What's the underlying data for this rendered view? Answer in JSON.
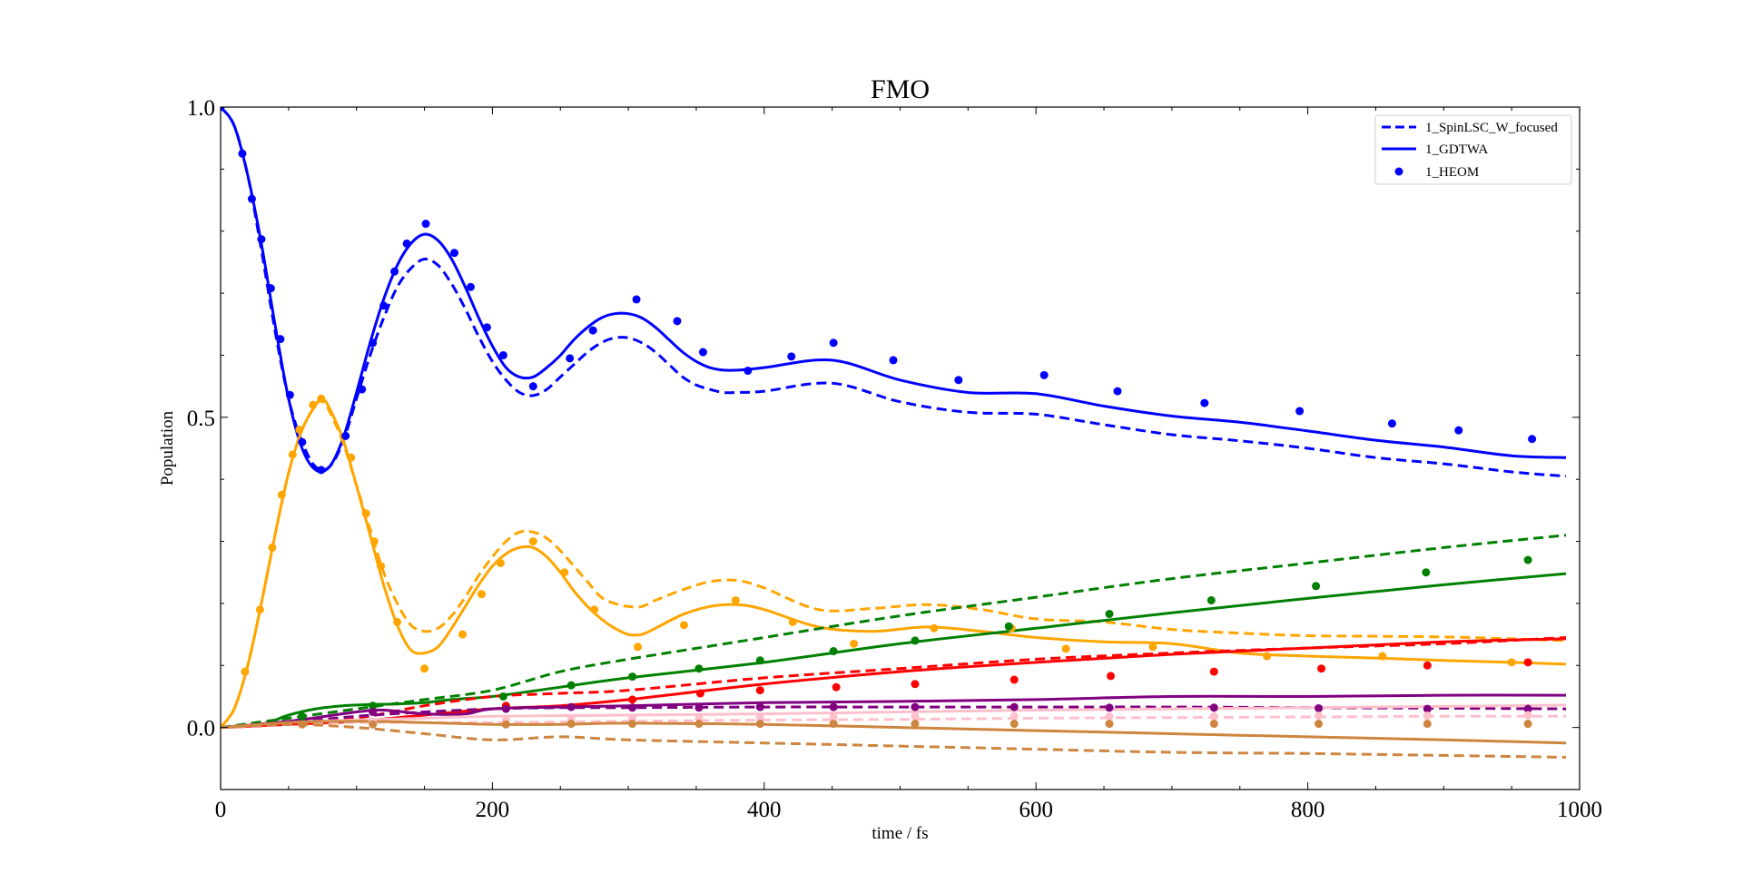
{
  "chart_data": {
    "type": "line",
    "title": "FMO",
    "xlabel": "time / fs",
    "ylabel": "Population",
    "xlim": [
      0,
      1000
    ],
    "ylim": [
      -0.1,
      1.0
    ],
    "x_major_ticks": [
      0,
      200,
      400,
      600,
      800,
      1000
    ],
    "x_major_tick_labels": [
      "0",
      "200",
      "400",
      "600",
      "800",
      "1000"
    ],
    "x_minor_ticks": [
      50,
      100,
      150,
      250,
      300,
      350,
      450,
      500,
      550,
      650,
      700,
      750,
      850,
      900,
      950
    ],
    "y_major_ticks": [
      0.0,
      0.5,
      1.0
    ],
    "y_major_tick_labels": [
      "0.0",
      "0.5",
      "1.0"
    ],
    "y_minor_ticks": [
      -0.1,
      0.1,
      0.2,
      0.3,
      0.4,
      0.6,
      0.7,
      0.8,
      0.9
    ],
    "grid": false,
    "legend_position": "top-right",
    "legend": [
      {
        "label": "1_SpinLSC_W_focused",
        "style": "dashed",
        "color": "#0000ff"
      },
      {
        "label": "1_GDTWA",
        "style": "solid",
        "color": "#0000ff"
      },
      {
        "label": "1_HEOM",
        "style": "dots",
        "color": "#0000ff"
      }
    ],
    "series": [
      {
        "name": "1_SpinLSC_W_focused",
        "color": "#0000ff",
        "style": "dashed",
        "x": [
          0,
          10,
          20,
          30,
          40,
          50,
          60,
          70,
          80,
          90,
          100,
          110,
          120,
          130,
          140,
          150,
          160,
          170,
          180,
          190,
          200,
          210,
          220,
          230,
          240,
          250,
          260,
          270,
          280,
          290,
          300,
          310,
          320,
          330,
          340,
          350,
          360,
          370,
          380,
          400,
          450,
          500,
          550,
          600,
          650,
          700,
          750,
          800,
          850,
          900,
          950,
          990
        ],
        "y": [
          1.0,
          0.97,
          0.89,
          0.77,
          0.64,
          0.53,
          0.46,
          0.42,
          0.42,
          0.46,
          0.53,
          0.6,
          0.66,
          0.71,
          0.74,
          0.755,
          0.745,
          0.715,
          0.675,
          0.63,
          0.59,
          0.56,
          0.54,
          0.535,
          0.545,
          0.565,
          0.585,
          0.605,
          0.62,
          0.628,
          0.628,
          0.62,
          0.605,
          0.585,
          0.565,
          0.552,
          0.545,
          0.54,
          0.54,
          0.542,
          0.555,
          0.525,
          0.508,
          0.505,
          0.488,
          0.472,
          0.462,
          0.45,
          0.435,
          0.425,
          0.412,
          0.405
        ]
      },
      {
        "name": "1_GDTWA",
        "color": "#0000ff",
        "style": "solid",
        "x": [
          0,
          10,
          20,
          30,
          40,
          50,
          60,
          70,
          80,
          90,
          100,
          110,
          120,
          130,
          140,
          150,
          160,
          170,
          180,
          190,
          200,
          210,
          220,
          230,
          240,
          250,
          260,
          270,
          280,
          290,
          300,
          310,
          320,
          330,
          340,
          350,
          360,
          370,
          380,
          400,
          450,
          500,
          550,
          600,
          650,
          700,
          750,
          800,
          850,
          900,
          950,
          990
        ],
        "y": [
          1.0,
          0.97,
          0.89,
          0.78,
          0.65,
          0.53,
          0.45,
          0.415,
          0.42,
          0.465,
          0.54,
          0.62,
          0.69,
          0.745,
          0.78,
          0.795,
          0.785,
          0.755,
          0.71,
          0.66,
          0.615,
          0.58,
          0.565,
          0.565,
          0.58,
          0.6,
          0.625,
          0.645,
          0.66,
          0.667,
          0.667,
          0.66,
          0.645,
          0.625,
          0.605,
          0.59,
          0.58,
          0.576,
          0.576,
          0.58,
          0.592,
          0.56,
          0.54,
          0.538,
          0.518,
          0.502,
          0.492,
          0.478,
          0.463,
          0.452,
          0.438,
          0.435
        ]
      },
      {
        "name": "1_HEOM",
        "color": "#0000ff",
        "style": "dots",
        "x": [
          0,
          16,
          23,
          30,
          37,
          44,
          51,
          60,
          74,
          92,
          104,
          112,
          120,
          128,
          137,
          151,
          172,
          184,
          196,
          208,
          230,
          257,
          274,
          306,
          336,
          355,
          388,
          420,
          451,
          495,
          543,
          606,
          660,
          724,
          794,
          862,
          911,
          965
        ],
        "y": [
          1.0,
          0.925,
          0.852,
          0.787,
          0.708,
          0.626,
          0.536,
          0.46,
          0.415,
          0.47,
          0.545,
          0.62,
          0.68,
          0.735,
          0.78,
          0.812,
          0.765,
          0.71,
          0.645,
          0.6,
          0.55,
          0.595,
          0.64,
          0.69,
          0.655,
          0.605,
          0.575,
          0.598,
          0.62,
          0.592,
          0.56,
          0.568,
          0.542,
          0.523,
          0.51,
          0.49,
          0.479,
          0.465
        ]
      },
      {
        "name": "",
        "color": "#ffa500",
        "style": "dashed",
        "x": [
          0,
          10,
          20,
          30,
          40,
          50,
          60,
          70,
          75,
          80,
          90,
          100,
          110,
          120,
          130,
          140,
          150,
          160,
          170,
          180,
          190,
          200,
          210,
          220,
          230,
          240,
          250,
          260,
          270,
          280,
          290,
          300,
          310,
          320,
          340,
          360,
          380,
          400,
          440,
          480,
          520,
          560,
          600,
          650,
          700,
          750,
          800,
          850,
          900,
          950,
          990
        ],
        "y": [
          0.0,
          0.03,
          0.1,
          0.2,
          0.31,
          0.41,
          0.48,
          0.52,
          0.525,
          0.51,
          0.46,
          0.39,
          0.32,
          0.25,
          0.2,
          0.165,
          0.155,
          0.16,
          0.18,
          0.21,
          0.245,
          0.275,
          0.3,
          0.315,
          0.315,
          0.305,
          0.285,
          0.26,
          0.235,
          0.21,
          0.2,
          0.195,
          0.195,
          0.205,
          0.222,
          0.235,
          0.237,
          0.225,
          0.19,
          0.192,
          0.198,
          0.19,
          0.175,
          0.17,
          0.158,
          0.152,
          0.148,
          0.147,
          0.146,
          0.143,
          0.14
        ]
      },
      {
        "name": "",
        "color": "#ffa500",
        "style": "solid",
        "x": [
          0,
          10,
          20,
          30,
          40,
          50,
          60,
          70,
          75,
          80,
          90,
          100,
          110,
          120,
          130,
          140,
          150,
          160,
          170,
          180,
          190,
          200,
          210,
          220,
          230,
          240,
          250,
          260,
          270,
          280,
          290,
          300,
          310,
          320,
          340,
          360,
          380,
          400,
          440,
          480,
          520,
          560,
          600,
          650,
          700,
          750,
          800,
          850,
          900,
          950,
          990
        ],
        "y": [
          0.0,
          0.03,
          0.1,
          0.2,
          0.31,
          0.41,
          0.48,
          0.52,
          0.53,
          0.515,
          0.465,
          0.39,
          0.31,
          0.23,
          0.165,
          0.125,
          0.12,
          0.13,
          0.16,
          0.195,
          0.23,
          0.26,
          0.28,
          0.29,
          0.29,
          0.275,
          0.25,
          0.22,
          0.195,
          0.175,
          0.16,
          0.15,
          0.15,
          0.16,
          0.182,
          0.195,
          0.198,
          0.19,
          0.162,
          0.155,
          0.162,
          0.155,
          0.145,
          0.138,
          0.135,
          0.12,
          0.115,
          0.112,
          0.108,
          0.105,
          0.102
        ]
      },
      {
        "name": "",
        "color": "#ffa500",
        "style": "dots",
        "x": [
          18,
          29,
          38,
          45,
          53,
          58,
          68,
          74,
          96,
          107,
          113,
          118,
          130,
          150,
          178,
          192,
          206,
          230,
          253,
          275,
          307,
          341,
          379,
          421,
          466,
          525,
          582,
          622,
          686,
          770,
          855,
          950
        ],
        "y": [
          0.09,
          0.19,
          0.29,
          0.375,
          0.44,
          0.48,
          0.52,
          0.53,
          0.435,
          0.345,
          0.3,
          0.26,
          0.17,
          0.095,
          0.15,
          0.215,
          0.265,
          0.3,
          0.25,
          0.19,
          0.13,
          0.165,
          0.205,
          0.17,
          0.135,
          0.16,
          0.16,
          0.127,
          0.13,
          0.115,
          0.115,
          0.105
        ]
      },
      {
        "name": "",
        "color": "#008000",
        "style": "dashed",
        "x": [
          0,
          50,
          100,
          150,
          200,
          250,
          300,
          400,
          500,
          600,
          700,
          800,
          900,
          990
        ],
        "y": [
          0.0,
          0.015,
          0.03,
          0.045,
          0.06,
          0.09,
          0.11,
          0.145,
          0.18,
          0.21,
          0.24,
          0.265,
          0.29,
          0.31
        ]
      },
      {
        "name": "",
        "color": "#008000",
        "style": "solid",
        "x": [
          0,
          30,
          50,
          70,
          90,
          110,
          130,
          150,
          170,
          200,
          250,
          300,
          400,
          500,
          600,
          700,
          800,
          900,
          990
        ],
        "y": [
          0.0,
          0.005,
          0.02,
          0.03,
          0.035,
          0.037,
          0.038,
          0.04,
          0.045,
          0.05,
          0.065,
          0.08,
          0.105,
          0.135,
          0.16,
          0.185,
          0.208,
          0.23,
          0.248
        ]
      },
      {
        "name": "",
        "color": "#008000",
        "style": "dots",
        "x": [
          60,
          112,
          208,
          258,
          303,
          352,
          397,
          451,
          511,
          580,
          654,
          729,
          806,
          887,
          962
        ],
        "y": [
          0.018,
          0.035,
          0.05,
          0.068,
          0.082,
          0.095,
          0.108,
          0.123,
          0.14,
          0.163,
          0.183,
          0.205,
          0.228,
          0.25,
          0.27
        ]
      },
      {
        "name": "",
        "color": "#ff0000",
        "style": "dashed",
        "x": [
          0,
          50,
          100,
          150,
          200,
          250,
          300,
          400,
          500,
          600,
          700,
          800,
          900,
          990
        ],
        "y": [
          0.0,
          0.005,
          0.015,
          0.035,
          0.05,
          0.055,
          0.06,
          0.08,
          0.095,
          0.11,
          0.12,
          0.128,
          0.135,
          0.145
        ]
      },
      {
        "name": "",
        "color": "#ff0000",
        "style": "solid",
        "x": [
          0,
          50,
          100,
          150,
          200,
          250,
          300,
          400,
          500,
          600,
          700,
          800,
          900,
          990
        ],
        "y": [
          0.0,
          0.005,
          0.01,
          0.02,
          0.03,
          0.035,
          0.045,
          0.07,
          0.09,
          0.105,
          0.118,
          0.128,
          0.138,
          0.143
        ]
      },
      {
        "name": "",
        "color": "#ff0000",
        "style": "dots",
        "x": [
          210,
          303,
          353,
          397,
          453,
          511,
          584,
          655,
          731,
          810,
          888,
          962
        ],
        "y": [
          0.035,
          0.045,
          0.055,
          0.06,
          0.065,
          0.07,
          0.077,
          0.083,
          0.09,
          0.095,
          0.1,
          0.105
        ]
      },
      {
        "name": "",
        "color": "#800080",
        "style": "dashed",
        "x": [
          0,
          50,
          100,
          150,
          200,
          250,
          300,
          400,
          500,
          600,
          700,
          800,
          900,
          990
        ],
        "y": [
          0.0,
          0.008,
          0.018,
          0.025,
          0.03,
          0.032,
          0.032,
          0.033,
          0.033,
          0.033,
          0.033,
          0.032,
          0.031,
          0.03
        ]
      },
      {
        "name": "",
        "color": "#800080",
        "style": "solid",
        "x": [
          0,
          50,
          100,
          120,
          150,
          180,
          200,
          250,
          300,
          400,
          500,
          600,
          700,
          800,
          900,
          990
        ],
        "y": [
          0.0,
          0.01,
          0.025,
          0.028,
          0.022,
          0.022,
          0.03,
          0.033,
          0.035,
          0.04,
          0.042,
          0.045,
          0.05,
          0.05,
          0.052,
          0.052
        ]
      },
      {
        "name": "",
        "color": "#800080",
        "style": "dots",
        "x": [
          112,
          210,
          258,
          303,
          352,
          397,
          451,
          511,
          584,
          654,
          731,
          808,
          888,
          962
        ],
        "y": [
          0.025,
          0.03,
          0.033,
          0.032,
          0.032,
          0.033,
          0.033,
          0.033,
          0.033,
          0.032,
          0.032,
          0.031,
          0.03,
          0.03
        ]
      },
      {
        "name": "",
        "color": "#ffc0cb",
        "style": "dashed",
        "x": [
          0,
          50,
          100,
          150,
          200,
          300,
          400,
          500,
          600,
          700,
          800,
          900,
          990
        ],
        "y": [
          0.0,
          0.005,
          0.008,
          0.008,
          0.008,
          0.01,
          0.012,
          0.013,
          0.015,
          0.016,
          0.017,
          0.018,
          0.018
        ]
      },
      {
        "name": "",
        "color": "#ffc0cb",
        "style": "solid",
        "x": [
          0,
          50,
          100,
          150,
          200,
          300,
          400,
          500,
          600,
          700,
          800,
          900,
          990
        ],
        "y": [
          0.0,
          0.008,
          0.012,
          0.015,
          0.018,
          0.02,
          0.022,
          0.025,
          0.028,
          0.03,
          0.032,
          0.034,
          0.036
        ]
      },
      {
        "name": "",
        "color": "#ffc0cb",
        "style": "dots",
        "x": [
          60,
          112,
          210,
          258,
          303,
          352,
          397,
          451,
          511,
          584,
          654,
          731,
          808,
          888,
          962
        ],
        "y": [
          0.005,
          0.01,
          0.012,
          0.015,
          0.015,
          0.015,
          0.016,
          0.017,
          0.018,
          0.018,
          0.018,
          0.018,
          0.019,
          0.019,
          0.02
        ]
      },
      {
        "name": "",
        "color": "#cd853f",
        "style": "dashed",
        "x": [
          0,
          50,
          100,
          150,
          200,
          250,
          300,
          400,
          500,
          600,
          700,
          800,
          900,
          990
        ],
        "y": [
          0.0,
          0.005,
          0.0,
          -0.01,
          -0.02,
          -0.015,
          -0.02,
          -0.025,
          -0.03,
          -0.035,
          -0.04,
          -0.042,
          -0.045,
          -0.048
        ]
      },
      {
        "name": "",
        "color": "#cd853f",
        "style": "solid",
        "x": [
          0,
          50,
          100,
          150,
          200,
          250,
          300,
          400,
          500,
          600,
          700,
          800,
          900,
          990
        ],
        "y": [
          0.0,
          0.008,
          0.01,
          0.008,
          0.005,
          0.005,
          0.007,
          0.005,
          0.0,
          -0.005,
          -0.01,
          -0.015,
          -0.02,
          -0.025
        ]
      },
      {
        "name": "",
        "color": "#cd853f",
        "style": "dots",
        "x": [
          60,
          112,
          210,
          258,
          303,
          352,
          397,
          451,
          511,
          584,
          654,
          731,
          808,
          888,
          962
        ],
        "y": [
          0.005,
          0.005,
          0.005,
          0.006,
          0.006,
          0.006,
          0.006,
          0.006,
          0.006,
          0.006,
          0.006,
          0.006,
          0.006,
          0.006,
          0.006
        ]
      }
    ]
  }
}
